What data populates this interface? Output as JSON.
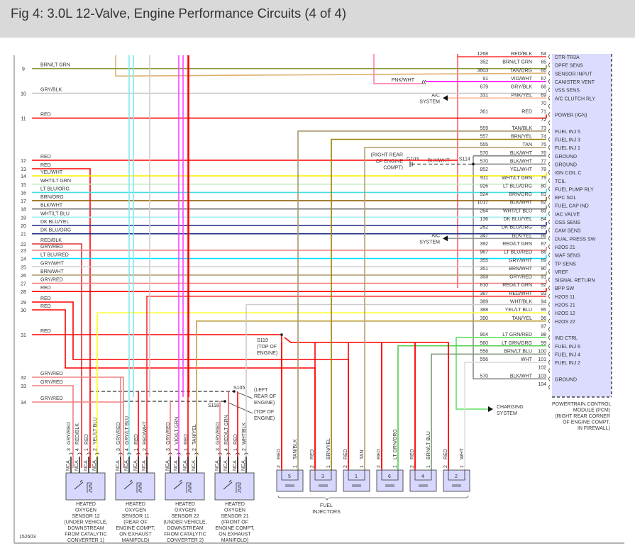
{
  "title": "Fig 4: 3.0L 12-Valve, Engine Performance Circuits (4 of 4)",
  "figure_number": "152603",
  "pcm": {
    "caption": [
      "POWERTRAIN CONTROL",
      "MODULE (PCM)",
      "(RIGHT REAR CORNER",
      "OF ENGINE COMPT,",
      "IN FIREWALL)"
    ],
    "fill": "#dcdcff",
    "pins": [
      {
        "pin": "64",
        "circuit": "1268",
        "color": "RED/BLK",
        "hex": "#e03030",
        "function": "DTR-TR3A"
      },
      {
        "pin": "65",
        "circuit": "352",
        "color": "BRN/LT GRN",
        "hex": "#8a9a3a",
        "function": "DPFE SENS"
      },
      {
        "pin": "66",
        "circuit": "3603",
        "color": "TAN/ORG",
        "hex": "#e0b070",
        "function": "SENSOR INPUT"
      },
      {
        "pin": "67",
        "circuit": "91",
        "color": "VIO/WHT",
        "hex": "#ff00ff",
        "function": "CANISTER VENT"
      },
      {
        "pin": "68",
        "circuit": "679",
        "color": "GRY/BLK",
        "hex": "#c8c8c8",
        "function": "VSS SENS"
      },
      {
        "pin": "69",
        "circuit": "331",
        "color": "PNK/YEL",
        "hex": "#ffb090",
        "function": "A/C CLUTCH RLY"
      },
      {
        "pin": "70",
        "circuit": "",
        "color": "",
        "hex": "",
        "function": ""
      },
      {
        "pin": "71",
        "circuit": "361",
        "color": "RED",
        "hex": "#ff0000",
        "function": "POWER (IGN)"
      },
      {
        "pin": "72",
        "circuit": "",
        "color": "",
        "hex": "",
        "function": ""
      },
      {
        "pin": "73",
        "circuit": "559",
        "color": "TAN/BLK",
        "hex": "#a89870",
        "function": "FUEL INJ 5"
      },
      {
        "pin": "74",
        "circuit": "557",
        "color": "BRN/YEL",
        "hex": "#9a8000",
        "function": "FUEL INJ 3"
      },
      {
        "pin": "75",
        "circuit": "555",
        "color": "TAN",
        "hex": "#b8a070",
        "function": "FUEL INJ 1"
      },
      {
        "pin": "76",
        "circuit": "570",
        "color": "BLK/WHT",
        "hex": "#888888",
        "function": "GROUND"
      },
      {
        "pin": "77",
        "circuit": "570",
        "color": "BLK/WHT",
        "hex": "#888888",
        "function": "GROUND"
      },
      {
        "pin": "78",
        "circuit": "852",
        "color": "YEL/WHT",
        "hex": "#f8f000",
        "function": "IGN COIL C"
      },
      {
        "pin": "79",
        "circuit": "911",
        "color": "WHT/LT GRN",
        "hex": "#c0ecc0",
        "function": "TCIL"
      },
      {
        "pin": "80",
        "circuit": "926",
        "color": "LT BLU/ORG",
        "hex": "#40e0e0",
        "function": "FUEL PUMP RLY"
      },
      {
        "pin": "81",
        "circuit": "924",
        "color": "BRN/ORG",
        "hex": "#8b5a00",
        "function": "EPC SOL"
      },
      {
        "pin": "82",
        "circuit": "1017",
        "color": "BLK/WHT",
        "hex": "#777777",
        "function": "FUEL CAP IND"
      },
      {
        "pin": "83",
        "circuit": "264",
        "color": "WHT/LT BLU",
        "hex": "#a0eef0",
        "function": "IAC VALVE"
      },
      {
        "pin": "84",
        "circuit": "136",
        "color": "DK BLU/YEL",
        "hex": "#1a2a80",
        "function": "OSS SENS"
      },
      {
        "pin": "85",
        "circuit": "282",
        "color": "DK BLU/ORG",
        "hex": "#1a2a80",
        "function": "CAM SENS"
      },
      {
        "pin": "86",
        "circuit": "347",
        "color": "BLK/YEL",
        "hex": "#999999",
        "function": "DUAL PRESS SW"
      },
      {
        "pin": "87",
        "circuit": "392",
        "color": "RED/LT GRN",
        "hex": "#ff5050",
        "function": "H2OS 21"
      },
      {
        "pin": "88",
        "circuit": "967",
        "color": "LT BLU/RED",
        "hex": "#00e0ff",
        "function": "MAF SENS"
      },
      {
        "pin": "89",
        "circuit": "355",
        "color": "GRY/WHT",
        "hex": "#cccccc",
        "function": "TP SENS"
      },
      {
        "pin": "90",
        "circuit": "351",
        "color": "BRN/WHT",
        "hex": "#b0a070",
        "function": "VREF"
      },
      {
        "pin": "91",
        "circuit": "359",
        "color": "GRY/RED",
        "hex": "#f08080",
        "function": "SIGNAL RETURN"
      },
      {
        "pin": "92",
        "circuit": "810",
        "color": "RED/LT GRN",
        "hex": "#ff4040",
        "function": "BPP SW"
      },
      {
        "pin": "93",
        "circuit": "387",
        "color": "RED/WHT",
        "hex": "#ff3030",
        "function": "H2OS 11"
      },
      {
        "pin": "94",
        "circuit": "389",
        "color": "WHT/BLK",
        "hex": "#cccccc",
        "function": "H2OS 21"
      },
      {
        "pin": "95",
        "circuit": "388",
        "color": "YEL/LT BLU",
        "hex": "#ffff30",
        "function": "H2OS 12"
      },
      {
        "pin": "96",
        "circuit": "390",
        "color": "TAN/YEL",
        "hex": "#c0a040",
        "function": "H2OS 22"
      },
      {
        "pin": "97",
        "circuit": "",
        "color": "",
        "hex": "",
        "function": ""
      },
      {
        "pin": "98",
        "circuit": "904",
        "color": "LT GRN/RED",
        "hex": "#60e060",
        "function": "IND CTRL"
      },
      {
        "pin": "99",
        "circuit": "560",
        "color": "LT GRN/ORG",
        "hex": "#50d050",
        "function": "FUEL INJ 6"
      },
      {
        "pin": "100",
        "circuit": "558",
        "color": "BRN/LT BLU",
        "hex": "#7a9a7a",
        "function": "FUEL INJ 4"
      },
      {
        "pin": "101",
        "circuit": "556",
        "color": "WHT",
        "hex": "#dddddd",
        "function": "FUEL INJ 2"
      },
      {
        "pin": "102",
        "circuit": "",
        "color": "",
        "hex": "",
        "function": ""
      },
      {
        "pin": "103",
        "circuit": "570",
        "color": "BLK/WHT",
        "hex": "#888888",
        "function": "GROUND"
      },
      {
        "pin": "104",
        "circuit": "",
        "color": "",
        "hex": "",
        "function": ""
      }
    ]
  },
  "left_wires": [
    {
      "row": "9",
      "label": "BRN/LT GRN",
      "hex": "#8a9a3a",
      "to_pin": "65"
    },
    {
      "row": "10",
      "label": "GRY/BLK",
      "hex": "#c8c8c8",
      "to_pin": "68"
    },
    {
      "row": "11",
      "label": "RED",
      "hex": "#ff0000",
      "to_pin": "71"
    },
    {
      "row": "12",
      "label": "RED",
      "hex": "#ff0000",
      "to_pin": ""
    },
    {
      "row": "13",
      "label": "RED",
      "hex": "#ff0000",
      "to_pin": ""
    },
    {
      "row": "14",
      "label": "YEL/WHT",
      "hex": "#f8f000",
      "to_pin": "78"
    },
    {
      "row": "15",
      "label": "WHT/LT GRN",
      "hex": "#c0ecc0",
      "to_pin": "79"
    },
    {
      "row": "16",
      "label": "LT BLU/ORG",
      "hex": "#40e0e0",
      "to_pin": "80"
    },
    {
      "row": "17",
      "label": "BRN/ORG",
      "hex": "#8b5a00",
      "to_pin": "81"
    },
    {
      "row": "18",
      "label": "BLK/WHT",
      "hex": "#777777",
      "to_pin": "82"
    },
    {
      "row": "19",
      "label": "WHT/LT BLU",
      "hex": "#a0eef0",
      "to_pin": "83"
    },
    {
      "row": "20",
      "label": "DK BLU/YEL",
      "hex": "#1a2a80",
      "to_pin": "84"
    },
    {
      "row": "21",
      "label": "DK BLU/ORG",
      "hex": "#1a2a80",
      "to_pin": "85"
    },
    {
      "row": "22",
      "label": "RED/BLK",
      "hex": "#e03030",
      "to_pin": ""
    },
    {
      "row": "23",
      "label": "GRY/RED",
      "hex": "#f08080",
      "to_pin": "87"
    },
    {
      "row": "24",
      "label": "LT BLU/RED",
      "hex": "#00e0ff",
      "to_pin": "88"
    },
    {
      "row": "25",
      "label": "GRY/WHT",
      "hex": "#cccccc",
      "to_pin": "89"
    },
    {
      "row": "26",
      "label": "BRN/WHT",
      "hex": "#b0a070",
      "to_pin": "90"
    },
    {
      "row": "27",
      "label": "GRY/RED",
      "hex": "#f08080",
      "to_pin": "91"
    },
    {
      "row": "28",
      "label": "RED",
      "hex": "#ff0000",
      "to_pin": "92"
    },
    {
      "row": "29",
      "label": "RED",
      "hex": "#ff0000",
      "to_pin": ""
    },
    {
      "row": "30",
      "label": "RED",
      "hex": "#ff0000",
      "to_pin": ""
    },
    {
      "row": "31",
      "label": "RED",
      "hex": "#ff0000",
      "to_pin": ""
    },
    {
      "row": "32",
      "label": "GRY/RED",
      "hex": "#f08080",
      "to_pin": ""
    },
    {
      "row": "33",
      "label": "GRY/RED",
      "hex": "#f08080",
      "to_pin": ""
    },
    {
      "row": "34",
      "label": "GRY/RED",
      "hex": "#f08080",
      "to_pin": ""
    }
  ],
  "sensors": [
    {
      "caption": [
        "HEATED",
        "OXYGEN",
        "SENSOR 12",
        "(UNDER VEHICLE,",
        "DOWNSTREAM",
        "FROM CATALYTIC",
        "CONVERTER 1)"
      ],
      "pins": [
        {
          "num": "3",
          "color": "GRY/RED",
          "hex": "#f08080",
          "nca": "NCA",
          "from": "row:33"
        },
        {
          "num": "4",
          "color": "RED/BLK",
          "hex": "#e03030",
          "nca": "NCA",
          "from": "row:22"
        },
        {
          "num": "1",
          "color": "RED",
          "hex": "#ff0000",
          "nca": "NCA",
          "from": "row:13"
        },
        {
          "num": "2",
          "color": "YEL/LT BLU",
          "hex": "#ffff30",
          "nca": "NCA",
          "from": "pin:95"
        }
      ]
    },
    {
      "caption": [
        "HEATED",
        "OXYGEN",
        "SENSOR 11",
        "(REAR OF",
        "ENGINE COMPT,",
        "ON EXHAUST",
        "MANIFOLD)"
      ],
      "pins": [
        {
          "num": "3",
          "color": "GRY/RED",
          "hex": "#f08080",
          "nca": "NCA",
          "from": "row:32"
        },
        {
          "num": "4",
          "color": "GRY/LT BLU",
          "hex": "#80e8f0",
          "nca": "NCA",
          "from": "top"
        },
        {
          "num": "1",
          "color": "RED",
          "hex": "#ff0000",
          "nca": "NCA",
          "from": "dash:S105"
        },
        {
          "num": "2",
          "color": "RED/WHT",
          "hex": "#ff3030",
          "nca": "NCA",
          "from": "pin:93"
        }
      ]
    },
    {
      "caption": [
        "HEATED",
        "OXYGEN",
        "SENSOR 22",
        "(UNDER VEHICLE,",
        "DOWNSTREAM",
        "FROM CATALYTIC",
        "CONVERTER 2)"
      ],
      "pins": [
        {
          "num": "3",
          "color": "GRY/RED",
          "hex": "#f08080",
          "nca": "NCA",
          "from": "dash:S118"
        },
        {
          "num": "4",
          "color": "VIO/LT GRN",
          "hex": "#ff40ff",
          "nca": "NCA",
          "from": "top"
        },
        {
          "num": "1",
          "color": "RED",
          "hex": "#ff0000",
          "nca": "NCA",
          "from": "top"
        },
        {
          "num": "2",
          "color": "TAN/YEL",
          "hex": "#c0a040",
          "nca": "NCA",
          "from": "pin:96"
        }
      ]
    },
    {
      "caption": [
        "HEATED",
        "OXYGEN",
        "SENSOR 21",
        "(FRONT OF",
        "ENGINE COMPT,",
        "ON EXHAUST",
        "MANIFOLD)"
      ],
      "pins": [
        {
          "num": "3",
          "color": "GRY/RED",
          "hex": "#f08080",
          "nca": "NCA",
          "from": "dash:S118"
        },
        {
          "num": "4",
          "color": "RED/LT GRN",
          "hex": "#ff5050",
          "nca": "NCA",
          "from": "dash:S105"
        },
        {
          "num": "1",
          "color": "RED",
          "hex": "#ff0000",
          "nca": "NCA",
          "from": "dash:S105"
        },
        {
          "num": "2",
          "color": "WHT/BLK",
          "hex": "#cccccc",
          "nca": "NCA",
          "from": "pin:94"
        }
      ]
    }
  ],
  "injectors": {
    "label": [
      "FUEL",
      "INJECTORS"
    ],
    "items": [
      {
        "num": "5",
        "pin2": "RED",
        "pin2_hex": "#ff0000",
        "pin1": "TAN/BLK",
        "pin1_hex": "#a89870",
        "pcm_pin": "73"
      },
      {
        "num": "3",
        "pin2": "RED",
        "pin2_hex": "#ff0000",
        "pin1": "BRN/YEL",
        "pin1_hex": "#9a8000",
        "pcm_pin": "74"
      },
      {
        "num": "1",
        "pin2": "RED",
        "pin2_hex": "#ff0000",
        "pin1": "TAN",
        "pin1_hex": "#b8a070",
        "pcm_pin": "75"
      },
      {
        "num": "6",
        "pin2": "RED",
        "pin2_hex": "#ff0000",
        "pin1": "LT GRN/ORG",
        "pin1_hex": "#50d050",
        "pcm_pin": "99"
      },
      {
        "num": "4",
        "pin2": "RED",
        "pin2_hex": "#ff0000",
        "pin1": "BRN/LT BLU",
        "pin1_hex": "#7a9a7a",
        "pcm_pin": "100"
      },
      {
        "num": "2",
        "pin2": "RED",
        "pin2_hex": "#ff0000",
        "pin1": "WHT",
        "pin1_hex": "#dddddd",
        "pcm_pin": "101"
      }
    ]
  },
  "annotations": {
    "pnk_wht": "PNK/WHT",
    "ac_system": [
      "A/C",
      "SYSTEM"
    ],
    "charging_system": [
      "CHARGING",
      "SYSTEM"
    ],
    "g103": "G103",
    "g103_location": [
      "(RIGHT REAR",
      "OF ENGINE",
      "COMPT)"
    ],
    "g103_wire": "BLK/WHT",
    "s114": "S114",
    "s119": "S119",
    "s119_location": [
      "(TOP OF",
      "ENGINE)"
    ],
    "s105": "S105",
    "s105_location": [
      "(LEFT",
      "REAR OF",
      "ENGINE)"
    ],
    "s118": "S118",
    "s118_location": [
      "(TOP OF",
      "ENGINE)"
    ]
  }
}
